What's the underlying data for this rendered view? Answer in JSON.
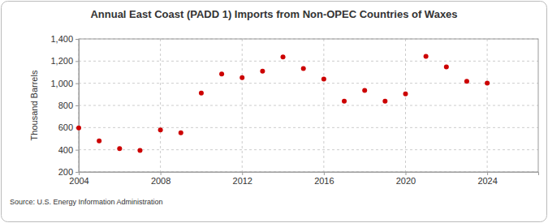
{
  "chart_data": {
    "type": "scatter",
    "title": "Annual East Coast (PADD 1) Imports from Non-OPEC Countries of Waxes",
    "y_label": "Thousand Barrels",
    "source": "Source: U.S. Energy Information Administration",
    "x": [
      2004,
      2005,
      2006,
      2007,
      2008,
      2009,
      2010,
      2011,
      2012,
      2013,
      2014,
      2015,
      2016,
      2017,
      2018,
      2019,
      2020,
      2021,
      2022,
      2023,
      2024
    ],
    "values": [
      597,
      480,
      410,
      393,
      578,
      553,
      912,
      1083,
      1050,
      1110,
      1237,
      1133,
      1038,
      838,
      935,
      838,
      905,
      1243,
      1148,
      1017,
      1002
    ],
    "color": "#cc0000",
    "marker": "circle",
    "xlim": [
      2004,
      2026.5
    ],
    "xticks": [
      2004,
      2008,
      2012,
      2016,
      2020,
      2024
    ],
    "ylim": [
      200,
      1400
    ],
    "yticks": [
      200,
      400,
      600,
      800,
      {
        "value": 1000,
        "label": "1,000"
      },
      {
        "value": 1200,
        "label": "1,200"
      },
      {
        "value": 1400,
        "label": "1,400"
      }
    ],
    "grid": true
  }
}
